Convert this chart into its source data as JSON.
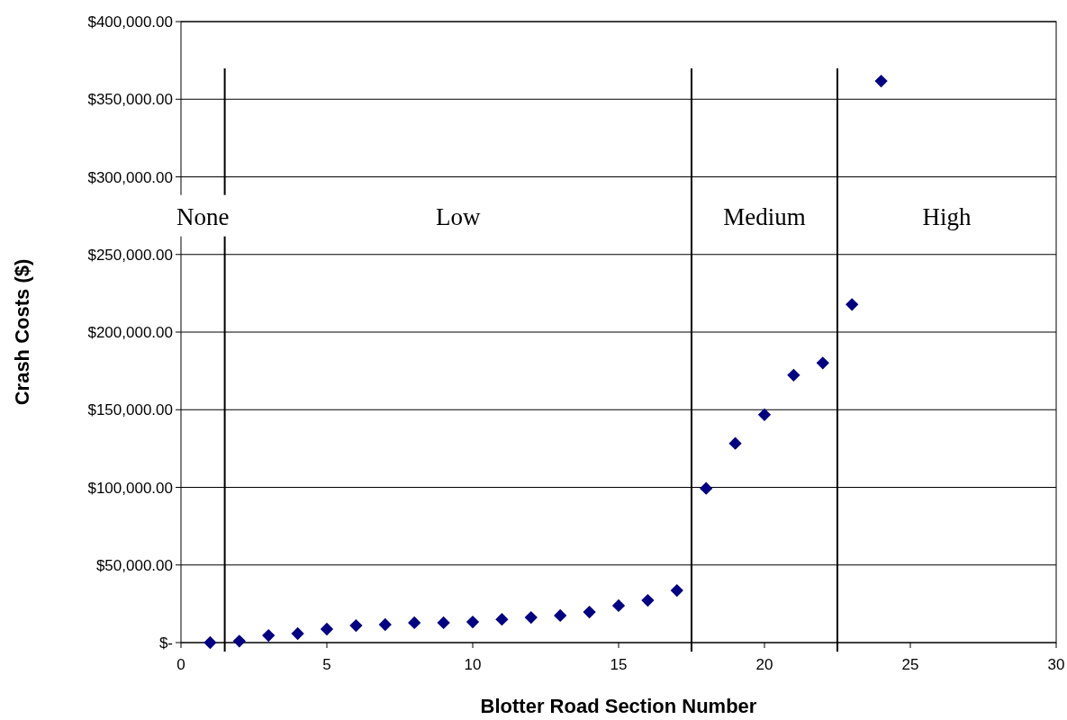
{
  "chart_data": {
    "type": "scatter",
    "xlabel": "Blotter Road Section Number",
    "ylabel": "Crash Costs ($)",
    "x": [
      1,
      2,
      3,
      4,
      5,
      6,
      7,
      8,
      9,
      10,
      11,
      12,
      13,
      14,
      15,
      16,
      17,
      18,
      19,
      20,
      21,
      22,
      23,
      24
    ],
    "values": [
      0,
      1000,
      4600,
      5800,
      8700,
      11000,
      11600,
      12800,
      12800,
      13300,
      15000,
      16200,
      17400,
      19700,
      23800,
      27200,
      33600,
      99300,
      128300,
      146800,
      172300,
      180100,
      217800,
      361700
    ],
    "color": "#000080",
    "marker": "diamond",
    "xlim": [
      0,
      30
    ],
    "xticks": [
      0,
      5,
      10,
      15,
      20,
      25,
      30
    ],
    "ylim": [
      0,
      400000
    ],
    "yticks": [
      {
        "value": 0,
        "label": "$-"
      },
      {
        "value": 50000,
        "label": "$50,000.00"
      },
      {
        "value": 100000,
        "label": "$100,000.00"
      },
      {
        "value": 150000,
        "label": "$150,000.00"
      },
      {
        "value": 200000,
        "label": "$200,000.00"
      },
      {
        "value": 250000,
        "label": "$250,000.00"
      },
      {
        "value": 300000,
        "label": "$300,000.00"
      },
      {
        "value": 350000,
        "label": "$350,000.00"
      },
      {
        "value": 400000,
        "label": "$400,000.00"
      }
    ],
    "grid": "y",
    "ref_lines": [
      {
        "axis": "x",
        "value": 1.5,
        "color": "#000000"
      },
      {
        "axis": "x",
        "value": 17.5,
        "color": "#000000"
      },
      {
        "axis": "x",
        "value": 22.5,
        "color": "#000000"
      }
    ],
    "annotations": [
      "None",
      "Low",
      "Medium",
      "High"
    ]
  }
}
